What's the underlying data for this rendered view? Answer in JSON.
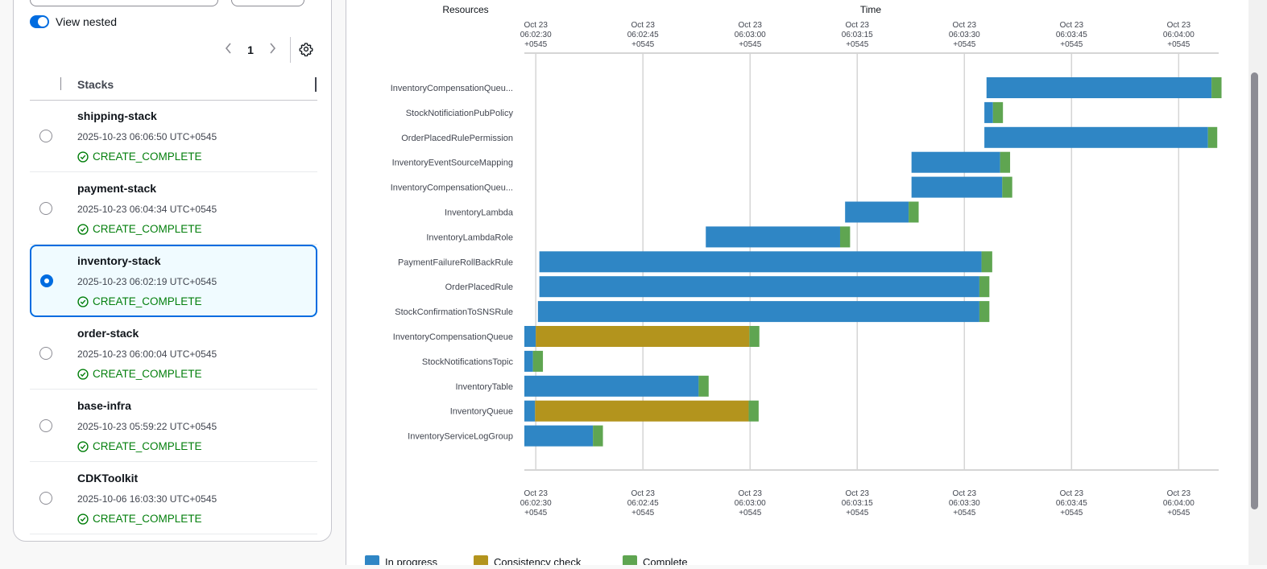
{
  "panel": {
    "view_nested_label": "View nested",
    "page_number": "1",
    "column_header": "Stacks"
  },
  "stacks": [
    {
      "name": "shipping-stack",
      "time": "2025-10-23 06:06:50 UTC+0545",
      "status": "CREATE_COMPLETE",
      "selected": false
    },
    {
      "name": "payment-stack",
      "time": "2025-10-23 06:04:34 UTC+0545",
      "status": "CREATE_COMPLETE",
      "selected": false
    },
    {
      "name": "inventory-stack",
      "time": "2025-10-23 06:02:19 UTC+0545",
      "status": "CREATE_COMPLETE",
      "selected": true
    },
    {
      "name": "order-stack",
      "time": "2025-10-23 06:00:04 UTC+0545",
      "status": "CREATE_COMPLETE",
      "selected": false
    },
    {
      "name": "base-infra",
      "time": "2025-10-23 05:59:22 UTC+0545",
      "status": "CREATE_COMPLETE",
      "selected": false
    },
    {
      "name": "CDKToolkit",
      "time": "2025-10-06 16:03:30 UTC+0545",
      "status": "CREATE_COMPLETE",
      "selected": false
    }
  ],
  "colors": {
    "accent": "#006ce0",
    "status_success": "#037f0c",
    "in_progress": "#2f86c5",
    "consistency_check": "#b3941d",
    "complete": "#5fa551",
    "gridline": "#d5d5d5"
  },
  "icons": {
    "toggle": "toggle-switch-icon",
    "prev": "chevron-left-icon",
    "next": "chevron-right-icon",
    "settings": "gear-icon",
    "status": "check-circle-icon"
  },
  "chart_data": {
    "type": "timeline",
    "column_headers": {
      "resources": "Resources",
      "time": "Time"
    },
    "x_ticks": [
      {
        "value": "06:02:30",
        "line1": "Oct 23",
        "line2": "06:02:30",
        "line3": "+0545"
      },
      {
        "value": "06:02:45",
        "line1": "Oct 23",
        "line2": "06:02:45",
        "line3": "+0545"
      },
      {
        "value": "06:03:00",
        "line1": "Oct 23",
        "line2": "06:03:00",
        "line3": "+0545"
      },
      {
        "value": "06:03:15",
        "line1": "Oct 23",
        "line2": "06:03:15",
        "line3": "+0545"
      },
      {
        "value": "06:03:30",
        "line1": "Oct 23",
        "line2": "06:03:30",
        "line3": "+0545"
      },
      {
        "value": "06:03:45",
        "line1": "Oct 23",
        "line2": "06:03:45",
        "line3": "+0545"
      },
      {
        "value": "06:04:00",
        "line1": "Oct 23",
        "line2": "06:04:00",
        "line3": "+0545"
      }
    ],
    "xlim": [
      "06:02:28.4",
      "06:04:05.6"
    ],
    "legend": [
      "In progress",
      "Consistency check",
      "Complete"
    ],
    "legend_position": "bottom",
    "grid": true,
    "resources": [
      {
        "name": "InventoryCompensationQueu...",
        "segments": [
          {
            "phase": "In progress",
            "start": "06:03:33.1",
            "end": "06:04:04.6"
          },
          {
            "phase": "Complete",
            "start": "06:04:04.6",
            "end": "06:04:06.0"
          }
        ]
      },
      {
        "name": "StockNotificiationPubPolicy",
        "segments": [
          {
            "phase": "In progress",
            "start": "06:03:32.8",
            "end": "06:03:34.0"
          },
          {
            "phase": "Complete",
            "start": "06:03:34.0",
            "end": "06:03:35.4"
          }
        ]
      },
      {
        "name": "OrderPlacedRulePermission",
        "segments": [
          {
            "phase": "In progress",
            "start": "06:03:32.8",
            "end": "06:03:34.0",
            "skip": true
          },
          {
            "phase": "In progress",
            "start": "06:03:32.8",
            "end": "06:04:04.1"
          },
          {
            "phase": "Complete",
            "start": "06:04:04.1",
            "end": "06:04:05.4"
          }
        ]
      },
      {
        "name": "InventoryEventSourceMapping",
        "segments": [
          {
            "phase": "In progress",
            "start": "06:03:22.6",
            "end": "06:03:35.0"
          },
          {
            "phase": "Complete",
            "start": "06:03:35.0",
            "end": "06:03:36.4"
          }
        ]
      },
      {
        "name": "InventoryCompensationQueu...",
        "segments": [
          {
            "phase": "In progress",
            "start": "06:03:22.6",
            "end": "06:03:35.3"
          },
          {
            "phase": "Complete",
            "start": "06:03:35.3",
            "end": "06:03:36.7"
          }
        ]
      },
      {
        "name": "InventoryLambda",
        "segments": [
          {
            "phase": "In progress",
            "start": "06:03:13.3",
            "end": "06:03:22.2"
          },
          {
            "phase": "Complete",
            "start": "06:03:22.2",
            "end": "06:03:23.6"
          }
        ]
      },
      {
        "name": "InventoryLambdaRole",
        "segments": [
          {
            "phase": "In progress",
            "start": "06:02:53.8",
            "end": "06:03:12.6"
          },
          {
            "phase": "Complete",
            "start": "06:03:12.6",
            "end": "06:03:14.0"
          }
        ]
      },
      {
        "name": "PaymentFailureRollBackRule",
        "segments": [
          {
            "phase": "In progress",
            "start": "06:02:30.5",
            "end": "06:03:32.4"
          },
          {
            "phase": "Complete",
            "start": "06:03:32.4",
            "end": "06:03:33.9"
          }
        ]
      },
      {
        "name": "OrderPlacedRule",
        "segments": [
          {
            "phase": "In progress",
            "start": "06:02:30.5",
            "end": "06:03:32.1"
          },
          {
            "phase": "Complete",
            "start": "06:03:32.1",
            "end": "06:03:33.5"
          }
        ]
      },
      {
        "name": "StockConfirmationToSNSRule",
        "segments": [
          {
            "phase": "In progress",
            "start": "06:02:30.3",
            "end": "06:03:32.1"
          },
          {
            "phase": "Complete",
            "start": "06:03:32.1",
            "end": "06:03:33.5"
          }
        ]
      },
      {
        "name": "InventoryCompensationQueue",
        "segments": [
          {
            "phase": "In progress",
            "start": "06:02:28.4",
            "end": "06:02:30.0"
          },
          {
            "phase": "Consistency check",
            "start": "06:02:30.0",
            "end": "06:02:59.9"
          },
          {
            "phase": "Complete",
            "start": "06:02:59.9",
            "end": "06:03:01.3"
          }
        ]
      },
      {
        "name": "StockNotificationsTopic",
        "segments": [
          {
            "phase": "In progress",
            "start": "06:02:28.4",
            "end": "06:02:29.6"
          },
          {
            "phase": "Complete",
            "start": "06:02:29.6",
            "end": "06:02:31.0"
          }
        ]
      },
      {
        "name": "InventoryTable",
        "segments": [
          {
            "phase": "In progress",
            "start": "06:02:28.4",
            "end": "06:02:52.8"
          },
          {
            "phase": "Complete",
            "start": "06:02:52.8",
            "end": "06:02:54.2"
          }
        ]
      },
      {
        "name": "InventoryQueue",
        "segments": [
          {
            "phase": "In progress",
            "start": "06:02:28.4",
            "end": "06:02:29.9"
          },
          {
            "phase": "Consistency check",
            "start": "06:02:29.9",
            "end": "06:02:59.8"
          },
          {
            "phase": "Complete",
            "start": "06:02:59.8",
            "end": "06:03:01.2"
          }
        ]
      },
      {
        "name": "InventoryServiceLogGroup",
        "segments": [
          {
            "phase": "In progress",
            "start": "06:02:28.4",
            "end": "06:02:38.0"
          },
          {
            "phase": "Complete",
            "start": "06:02:38.0",
            "end": "06:02:39.4"
          }
        ]
      }
    ]
  }
}
